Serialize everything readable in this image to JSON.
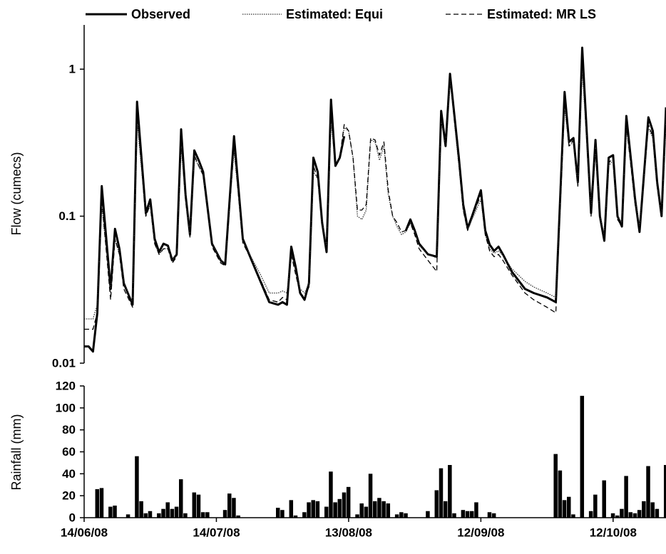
{
  "chart_data": [
    {
      "type": "line",
      "ylabel": "Flow (cumecs)",
      "log_scale": true,
      "ylim": [
        0.01,
        2
      ],
      "yticks": [
        0.01,
        0.1,
        1
      ],
      "xlim": [
        "2008-06-14",
        "2008-10-24"
      ],
      "x": [
        "2008-06-14",
        "2008-06-15",
        "2008-06-16",
        "2008-06-17",
        "2008-06-18",
        "2008-06-20",
        "2008-06-21",
        "2008-06-22",
        "2008-06-23",
        "2008-06-25",
        "2008-06-26",
        "2008-06-28",
        "2008-06-29",
        "2008-06-30",
        "2008-07-01",
        "2008-07-02",
        "2008-07-03",
        "2008-07-04",
        "2008-07-05",
        "2008-07-06",
        "2008-07-07",
        "2008-07-08",
        "2008-07-09",
        "2008-07-10",
        "2008-07-11",
        "2008-07-13",
        "2008-07-15",
        "2008-07-16",
        "2008-07-18",
        "2008-07-20",
        "2008-07-22",
        "2008-07-24",
        "2008-07-26",
        "2008-07-28",
        "2008-07-29",
        "2008-07-30",
        "2008-07-31",
        "2008-08-01",
        "2008-08-02",
        "2008-08-03",
        "2008-08-04",
        "2008-08-05",
        "2008-08-06",
        "2008-08-07",
        "2008-08-08",
        "2008-08-09",
        "2008-08-10",
        "2008-08-11",
        "2008-08-12",
        "2008-08-13",
        "2008-08-14",
        "2008-08-15",
        "2008-08-16",
        "2008-08-17",
        "2008-08-18",
        "2008-08-19",
        "2008-08-20",
        "2008-08-21",
        "2008-08-22",
        "2008-08-23",
        "2008-08-24",
        "2008-08-25",
        "2008-08-26",
        "2008-08-27",
        "2008-08-28",
        "2008-08-29",
        "2008-08-31",
        "2008-09-02",
        "2008-09-03",
        "2008-09-04",
        "2008-09-05",
        "2008-09-07",
        "2008-09-08",
        "2008-09-09",
        "2008-09-10",
        "2008-09-12",
        "2008-09-13",
        "2008-09-14",
        "2008-09-15",
        "2008-09-16",
        "2008-09-17",
        "2008-09-19",
        "2008-09-22",
        "2008-09-24",
        "2008-09-27",
        "2008-09-29",
        "2008-10-01",
        "2008-10-02",
        "2008-10-03",
        "2008-10-04",
        "2008-10-05",
        "2008-10-07",
        "2008-10-08",
        "2008-10-09",
        "2008-10-10",
        "2008-10-11",
        "2008-10-12",
        "2008-10-13",
        "2008-10-14",
        "2008-10-15",
        "2008-10-17",
        "2008-10-18",
        "2008-10-20",
        "2008-10-21",
        "2008-10-22",
        "2008-10-23",
        "2008-10-24"
      ],
      "series": [
        {
          "name": "Observed",
          "color": "#000000",
          "style": "solid",
          "width": 3,
          "values": [
            0.013,
            0.013,
            0.012,
            0.022,
            0.16,
            0.032,
            0.082,
            0.06,
            0.035,
            0.025,
            0.6,
            0.105,
            0.13,
            0.07,
            0.057,
            0.065,
            0.063,
            0.05,
            0.055,
            0.39,
            0.14,
            0.075,
            0.28,
            0.24,
            0.2,
            0.065,
            0.05,
            0.047,
            0.35,
            0.07,
            0.05,
            0.036,
            0.026,
            0.025,
            0.026,
            0.025,
            0.062,
            0.045,
            0.03,
            0.027,
            0.035,
            0.25,
            0.2,
            0.09,
            0.057,
            0.62,
            0.22,
            0.25,
            0.35,
            null,
            null,
            null,
            null,
            null,
            null,
            null,
            null,
            null,
            null,
            null,
            null,
            null,
            0.08,
            0.095,
            0.08,
            0.065,
            0.055,
            0.053,
            0.52,
            0.3,
            0.93,
            0.25,
            0.12,
            0.083,
            0.1,
            0.15,
            0.08,
            0.064,
            0.058,
            0.062,
            0.055,
            0.042,
            0.032,
            0.03,
            0.028,
            0.026,
            0.7,
            0.32,
            0.34,
            0.17,
            1.4,
            0.105,
            0.33,
            0.1,
            0.068,
            0.25,
            0.26,
            0.1,
            0.085,
            0.48,
            0.13,
            0.078,
            0.47,
            0.38,
            0.17,
            0.1,
            0.55
          ]
        },
        {
          "name": "Estimated: Equi",
          "color": "#333333",
          "style": "dotted",
          "width": 1.3,
          "values": [
            0.02,
            0.02,
            0.02,
            0.025,
            0.12,
            0.03,
            0.07,
            0.055,
            0.035,
            0.026,
            0.45,
            0.1,
            0.12,
            0.065,
            0.055,
            0.06,
            0.06,
            0.05,
            0.055,
            0.3,
            0.13,
            0.075,
            0.25,
            0.22,
            0.19,
            0.065,
            0.05,
            0.048,
            0.28,
            0.068,
            0.052,
            0.04,
            0.03,
            0.03,
            0.031,
            0.03,
            0.055,
            0.042,
            0.032,
            0.03,
            0.035,
            0.2,
            0.18,
            0.09,
            0.06,
            0.45,
            0.22,
            0.25,
            0.4,
            0.38,
            0.25,
            0.1,
            0.095,
            0.11,
            0.33,
            0.32,
            0.24,
            0.3,
            0.14,
            0.1,
            0.085,
            0.075,
            0.078,
            0.09,
            0.078,
            0.063,
            0.055,
            0.052,
            0.45,
            0.3,
            0.85,
            0.22,
            0.11,
            0.08,
            0.095,
            0.13,
            0.075,
            0.06,
            0.056,
            0.058,
            0.054,
            0.044,
            0.036,
            0.033,
            0.03,
            0.028,
            0.55,
            0.3,
            0.32,
            0.16,
            1.0,
            0.11,
            0.3,
            0.1,
            0.075,
            0.22,
            0.24,
            0.1,
            0.09,
            0.4,
            0.13,
            0.085,
            0.4,
            0.34,
            0.16,
            0.1,
            0.45
          ]
        },
        {
          "name": "Estimated: MR LS",
          "color": "#000000",
          "style": "dashed",
          "width": 1.3,
          "values": [
            0.017,
            0.017,
            0.017,
            0.022,
            0.13,
            0.027,
            0.07,
            0.055,
            0.032,
            0.024,
            0.5,
            0.1,
            0.12,
            0.065,
            0.055,
            0.06,
            0.06,
            0.048,
            0.053,
            0.33,
            0.13,
            0.072,
            0.26,
            0.22,
            0.19,
            0.062,
            0.048,
            0.046,
            0.3,
            0.066,
            0.05,
            0.037,
            0.027,
            0.026,
            0.028,
            0.027,
            0.055,
            0.04,
            0.03,
            0.028,
            0.033,
            0.22,
            0.18,
            0.088,
            0.058,
            0.5,
            0.22,
            0.25,
            0.42,
            0.38,
            0.25,
            0.11,
            0.11,
            0.12,
            0.34,
            0.33,
            0.26,
            0.32,
            0.15,
            0.1,
            0.09,
            0.078,
            0.08,
            0.09,
            0.075,
            0.06,
            0.05,
            0.042,
            0.48,
            0.3,
            0.9,
            0.23,
            0.11,
            0.08,
            0.098,
            0.14,
            0.075,
            0.058,
            0.053,
            0.055,
            0.05,
            0.04,
            0.03,
            0.027,
            0.024,
            0.022,
            0.6,
            0.3,
            0.33,
            0.16,
            1.2,
            0.1,
            0.31,
            0.095,
            0.07,
            0.23,
            0.25,
            0.095,
            0.085,
            0.42,
            0.12,
            0.08,
            0.42,
            0.35,
            0.16,
            0.1,
            0.5
          ]
        }
      ]
    },
    {
      "type": "bar",
      "ylabel": "Rainfall (mm)",
      "ylim": [
        0,
        120
      ],
      "yticks": [
        0,
        20,
        40,
        60,
        80,
        100,
        120
      ],
      "color": "#000000",
      "xlim": [
        "2008-06-14",
        "2008-10-24"
      ],
      "xticks": [
        {
          "value": "2008-06-14",
          "label": "14/06/08"
        },
        {
          "value": "2008-07-14",
          "label": "14/07/08"
        },
        {
          "value": "2008-08-13",
          "label": "13/08/08"
        },
        {
          "value": "2008-09-12",
          "label": "12/09/08"
        },
        {
          "value": "2008-10-12",
          "label": "12/10/08"
        }
      ],
      "x": [
        "2008-06-17",
        "2008-06-18",
        "2008-06-20",
        "2008-06-21",
        "2008-06-24",
        "2008-06-26",
        "2008-06-27",
        "2008-06-28",
        "2008-06-29",
        "2008-07-01",
        "2008-07-02",
        "2008-07-03",
        "2008-07-04",
        "2008-07-05",
        "2008-07-06",
        "2008-07-07",
        "2008-07-09",
        "2008-07-10",
        "2008-07-11",
        "2008-07-12",
        "2008-07-16",
        "2008-07-17",
        "2008-07-18",
        "2008-07-19",
        "2008-07-28",
        "2008-07-29",
        "2008-07-31",
        "2008-08-01",
        "2008-08-03",
        "2008-08-04",
        "2008-08-05",
        "2008-08-06",
        "2008-08-08",
        "2008-08-09",
        "2008-08-10",
        "2008-08-11",
        "2008-08-12",
        "2008-08-13",
        "2008-08-15",
        "2008-08-16",
        "2008-08-17",
        "2008-08-18",
        "2008-08-19",
        "2008-08-20",
        "2008-08-21",
        "2008-08-22",
        "2008-08-24",
        "2008-08-25",
        "2008-08-26",
        "2008-08-31",
        "2008-09-02",
        "2008-09-03",
        "2008-09-04",
        "2008-09-05",
        "2008-09-06",
        "2008-09-08",
        "2008-09-09",
        "2008-09-10",
        "2008-09-11",
        "2008-09-14",
        "2008-09-15",
        "2008-09-29",
        "2008-09-30",
        "2008-10-01",
        "2008-10-02",
        "2008-10-03",
        "2008-10-05",
        "2008-10-07",
        "2008-10-08",
        "2008-10-10",
        "2008-10-12",
        "2008-10-13",
        "2008-10-14",
        "2008-10-15",
        "2008-10-16",
        "2008-10-17",
        "2008-10-18",
        "2008-10-19",
        "2008-10-20",
        "2008-10-21",
        "2008-10-22",
        "2008-10-24"
      ],
      "values": [
        26,
        27,
        10,
        11,
        3,
        56,
        15,
        4,
        6,
        4,
        8,
        14,
        8,
        10,
        35,
        4,
        23,
        21,
        5,
        5,
        7,
        22,
        18,
        2,
        9,
        7,
        16,
        2,
        5,
        14,
        16,
        15,
        10,
        42,
        14,
        17,
        23,
        28,
        3,
        13,
        10,
        40,
        15,
        18,
        15,
        13,
        3,
        5,
        4,
        6,
        25,
        45,
        15,
        48,
        4,
        7,
        6,
        6,
        14,
        5,
        4,
        58,
        43,
        16,
        19,
        3,
        111,
        6,
        21,
        34,
        4,
        2,
        8,
        38,
        5,
        4,
        7,
        15,
        47,
        14,
        8,
        48
      ]
    }
  ]
}
